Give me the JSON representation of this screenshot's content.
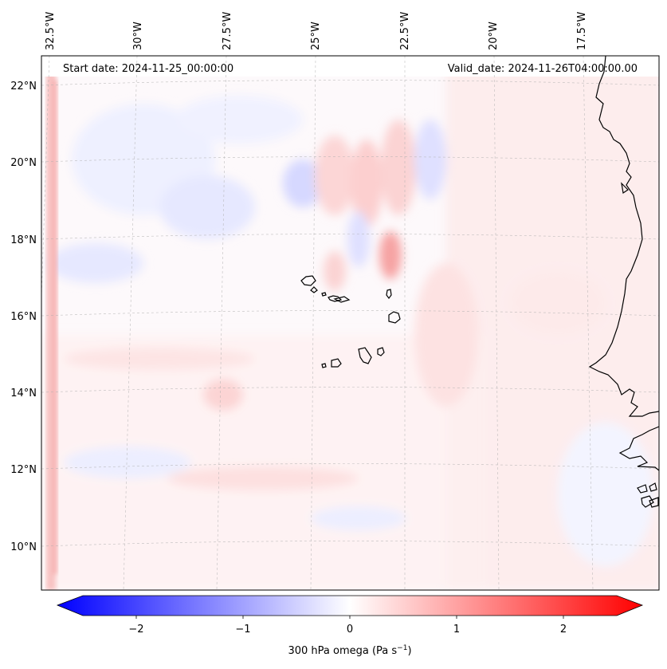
{
  "map": {
    "variable_label": "300 hPa omega (Pa s",
    "variable_unit_exp": "−1",
    "variable_label_close": ")",
    "start_date": "Start date: 2024-11-25_00:00:00",
    "valid_date": "Valid_date: 2024-11-26T04:00:00.00",
    "lon_labels": [
      "32.5°W",
      "30°W",
      "27.5°W",
      "25°W",
      "22.5°W",
      "20°W",
      "17.5°W"
    ],
    "lat_labels": [
      "22°N",
      "20°N",
      "18°N",
      "16°N",
      "14°N",
      "12°N",
      "10°N"
    ],
    "colorbar": {
      "ticks": [
        "−2",
        "−1",
        "0",
        "1",
        "2"
      ],
      "vmin": -2.5,
      "vmax": 2.5,
      "neg_color": "#0000ff",
      "zero_color": "#ffffff",
      "pos_color": "#ff0000"
    },
    "colors": {
      "coast": "#000000",
      "grid": "#b0b0b0",
      "pos_light": "#fde7e7",
      "pos_mid": "#fbcaca",
      "pos_strong": "#f59a9a",
      "neg_light": "#eef0ff",
      "neg_mid": "#dcdcff",
      "neg_strong": "#c2c4fb"
    }
  }
}
